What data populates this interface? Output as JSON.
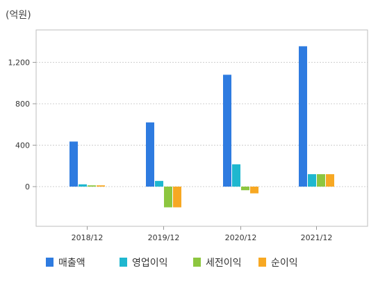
{
  "chart_data": {
    "type": "bar",
    "unit_label": "(억원)",
    "categories": [
      "2018/12",
      "2019/12",
      "2020/12",
      "2021/12"
    ],
    "series": [
      {
        "name": "매출액",
        "color": "#2e7be0",
        "values": [
          435,
          620,
          1080,
          1355
        ]
      },
      {
        "name": "영업이익",
        "color": "#1fb7cf",
        "values": [
          22,
          55,
          215,
          120
        ]
      },
      {
        "name": "세전이익",
        "color": "#8dc63f",
        "values": [
          12,
          -200,
          -35,
          120
        ]
      },
      {
        "name": "순이익",
        "color": "#f7a823",
        "values": [
          12,
          -200,
          -65,
          120
        ]
      }
    ],
    "ylim": [
      -400,
      1600
    ],
    "yticks": [
      0,
      400,
      800,
      1200
    ],
    "ytick_labels": [
      "0",
      "400",
      "800",
      "1,200"
    ],
    "grid": "horizontal dotted",
    "legend_position": "bottom"
  }
}
